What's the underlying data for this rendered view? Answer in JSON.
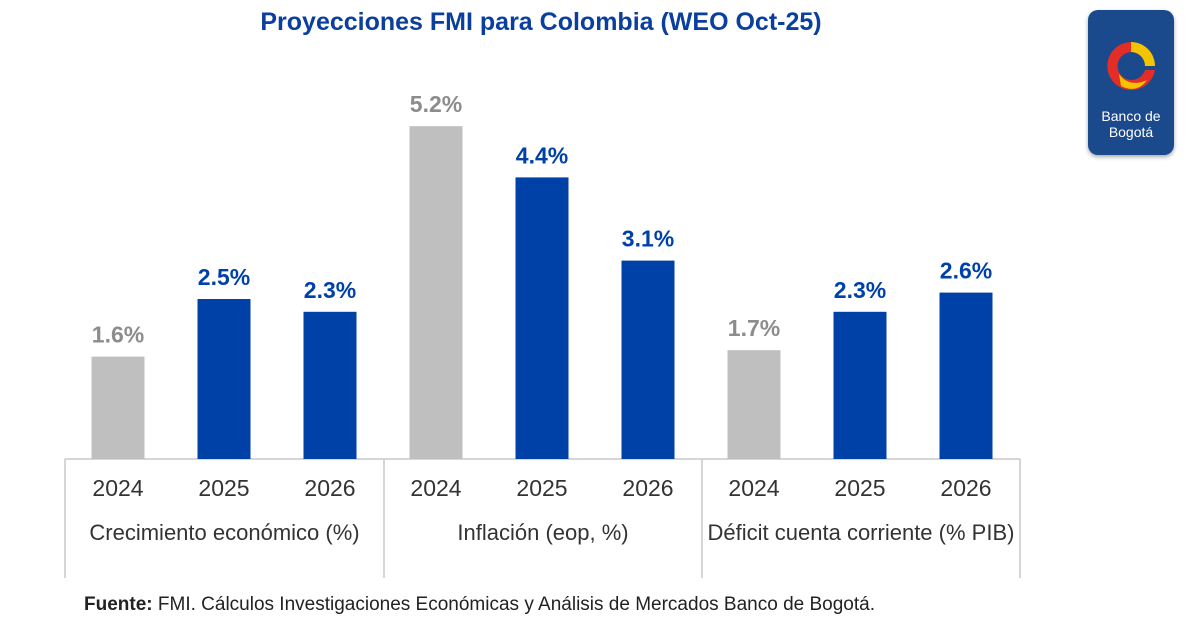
{
  "colors": {
    "title": "#0a3fa0",
    "historical_bar": "#bfbfbf",
    "projection_bar": "#0041a8",
    "historical_label": "#8c8c8c",
    "projection_label": "#0041a8",
    "logo_bg": "#1a4a8c"
  },
  "logo": {
    "line1": "Banco de",
    "line2": "Bogotá"
  },
  "source": {
    "label": "Fuente:",
    "text": "FMI. Cálculos Investigaciones Económicas y Análisis de Mercados Banco de Bogotá."
  },
  "chart_data": {
    "type": "bar",
    "title": "Proyecciones FMI para Colombia (WEO Oct-25)",
    "xlabel": "",
    "ylabel": "",
    "ylim": [
      0,
      5.8
    ],
    "grid": false,
    "groups": [
      {
        "name": "Crecimiento económico (%)",
        "categories": [
          "2024",
          "2025",
          "2026"
        ],
        "values": [
          1.6,
          2.5,
          2.3
        ],
        "labels": [
          "1.6%",
          "2.5%",
          "2.3%"
        ]
      },
      {
        "name": "Inflación (eop, %)",
        "categories": [
          "2024",
          "2025",
          "2026"
        ],
        "values": [
          5.2,
          4.4,
          3.1
        ],
        "labels": [
          "5.2%",
          "4.4%",
          "3.1%"
        ]
      },
      {
        "name": "Déficit cuenta corriente (% PIB)",
        "categories": [
          "2024",
          "2025",
          "2026"
        ],
        "values": [
          1.7,
          2.3,
          2.6
        ],
        "labels": [
          "1.7%",
          "2.3%",
          "2.6%"
        ]
      }
    ]
  }
}
